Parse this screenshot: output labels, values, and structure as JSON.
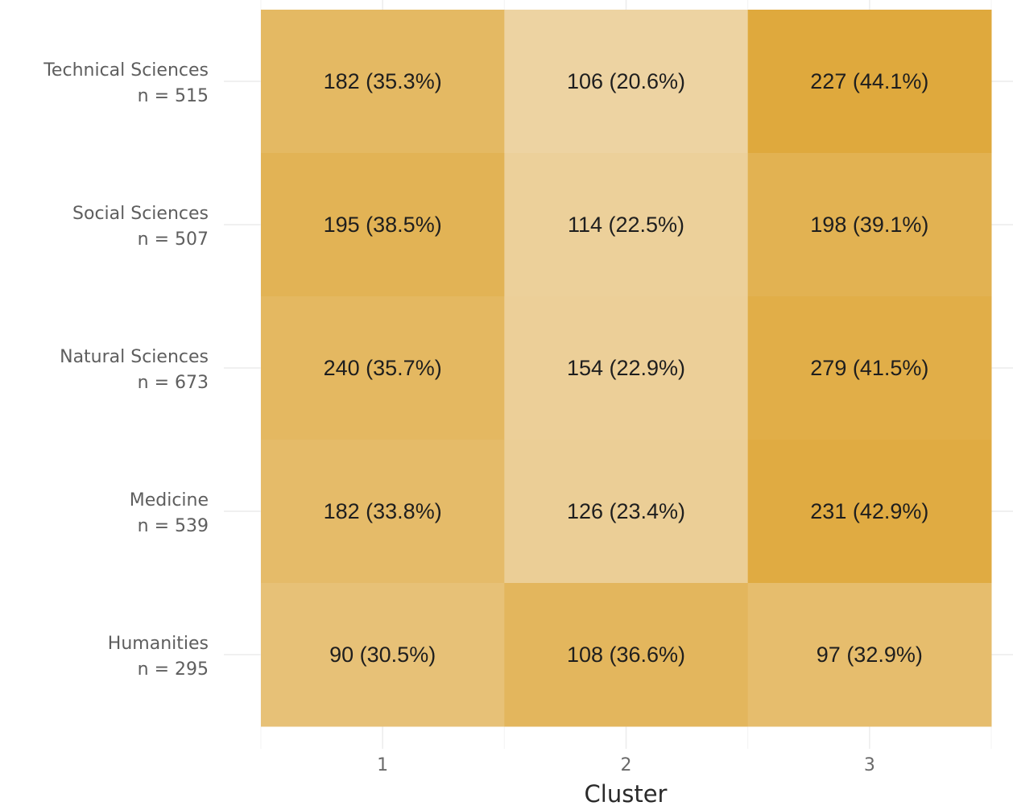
{
  "chart_data": {
    "type": "heatmap",
    "title": "",
    "xlabel": "Cluster",
    "ylabel": "",
    "grid": true,
    "legend": "none",
    "x_categories": [
      "1",
      "2",
      "3"
    ],
    "rows": [
      {
        "name": "Technical Sciences",
        "n_label": "n = 515",
        "values": [
          182,
          106,
          227
        ],
        "percents": [
          35.3,
          20.6,
          44.1
        ],
        "labels": [
          "182 (35.3%)",
          "106 (20.6%)",
          "227 (44.1%)"
        ]
      },
      {
        "name": "Social Sciences",
        "n_label": "n = 507",
        "values": [
          195,
          114,
          198
        ],
        "percents": [
          38.5,
          22.5,
          39.1
        ],
        "labels": [
          "195 (38.5%)",
          "114 (22.5%)",
          "198 (39.1%)"
        ]
      },
      {
        "name": "Natural Sciences",
        "n_label": "n = 673",
        "values": [
          240,
          154,
          279
        ],
        "percents": [
          35.7,
          22.9,
          41.5
        ],
        "labels": [
          "240 (35.7%)",
          "154 (22.9%)",
          "279 (41.5%)"
        ]
      },
      {
        "name": "Medicine",
        "n_label": "n = 539",
        "values": [
          182,
          126,
          231
        ],
        "percents": [
          33.8,
          23.4,
          42.9
        ],
        "labels": [
          "182 (33.8%)",
          "126 (23.4%)",
          "231 (42.9%)"
        ]
      },
      {
        "name": "Humanities",
        "n_label": "n = 295",
        "values": [
          90,
          108,
          97
        ],
        "percents": [
          30.5,
          36.6,
          32.9
        ],
        "labels": [
          "90 (30.5%)",
          "108 (36.6%)",
          "97 (32.9%)"
        ]
      }
    ],
    "color_scale": {
      "low": "#edd3a2",
      "high": "#dfa93d",
      "grid_color": "#ececec"
    }
  }
}
